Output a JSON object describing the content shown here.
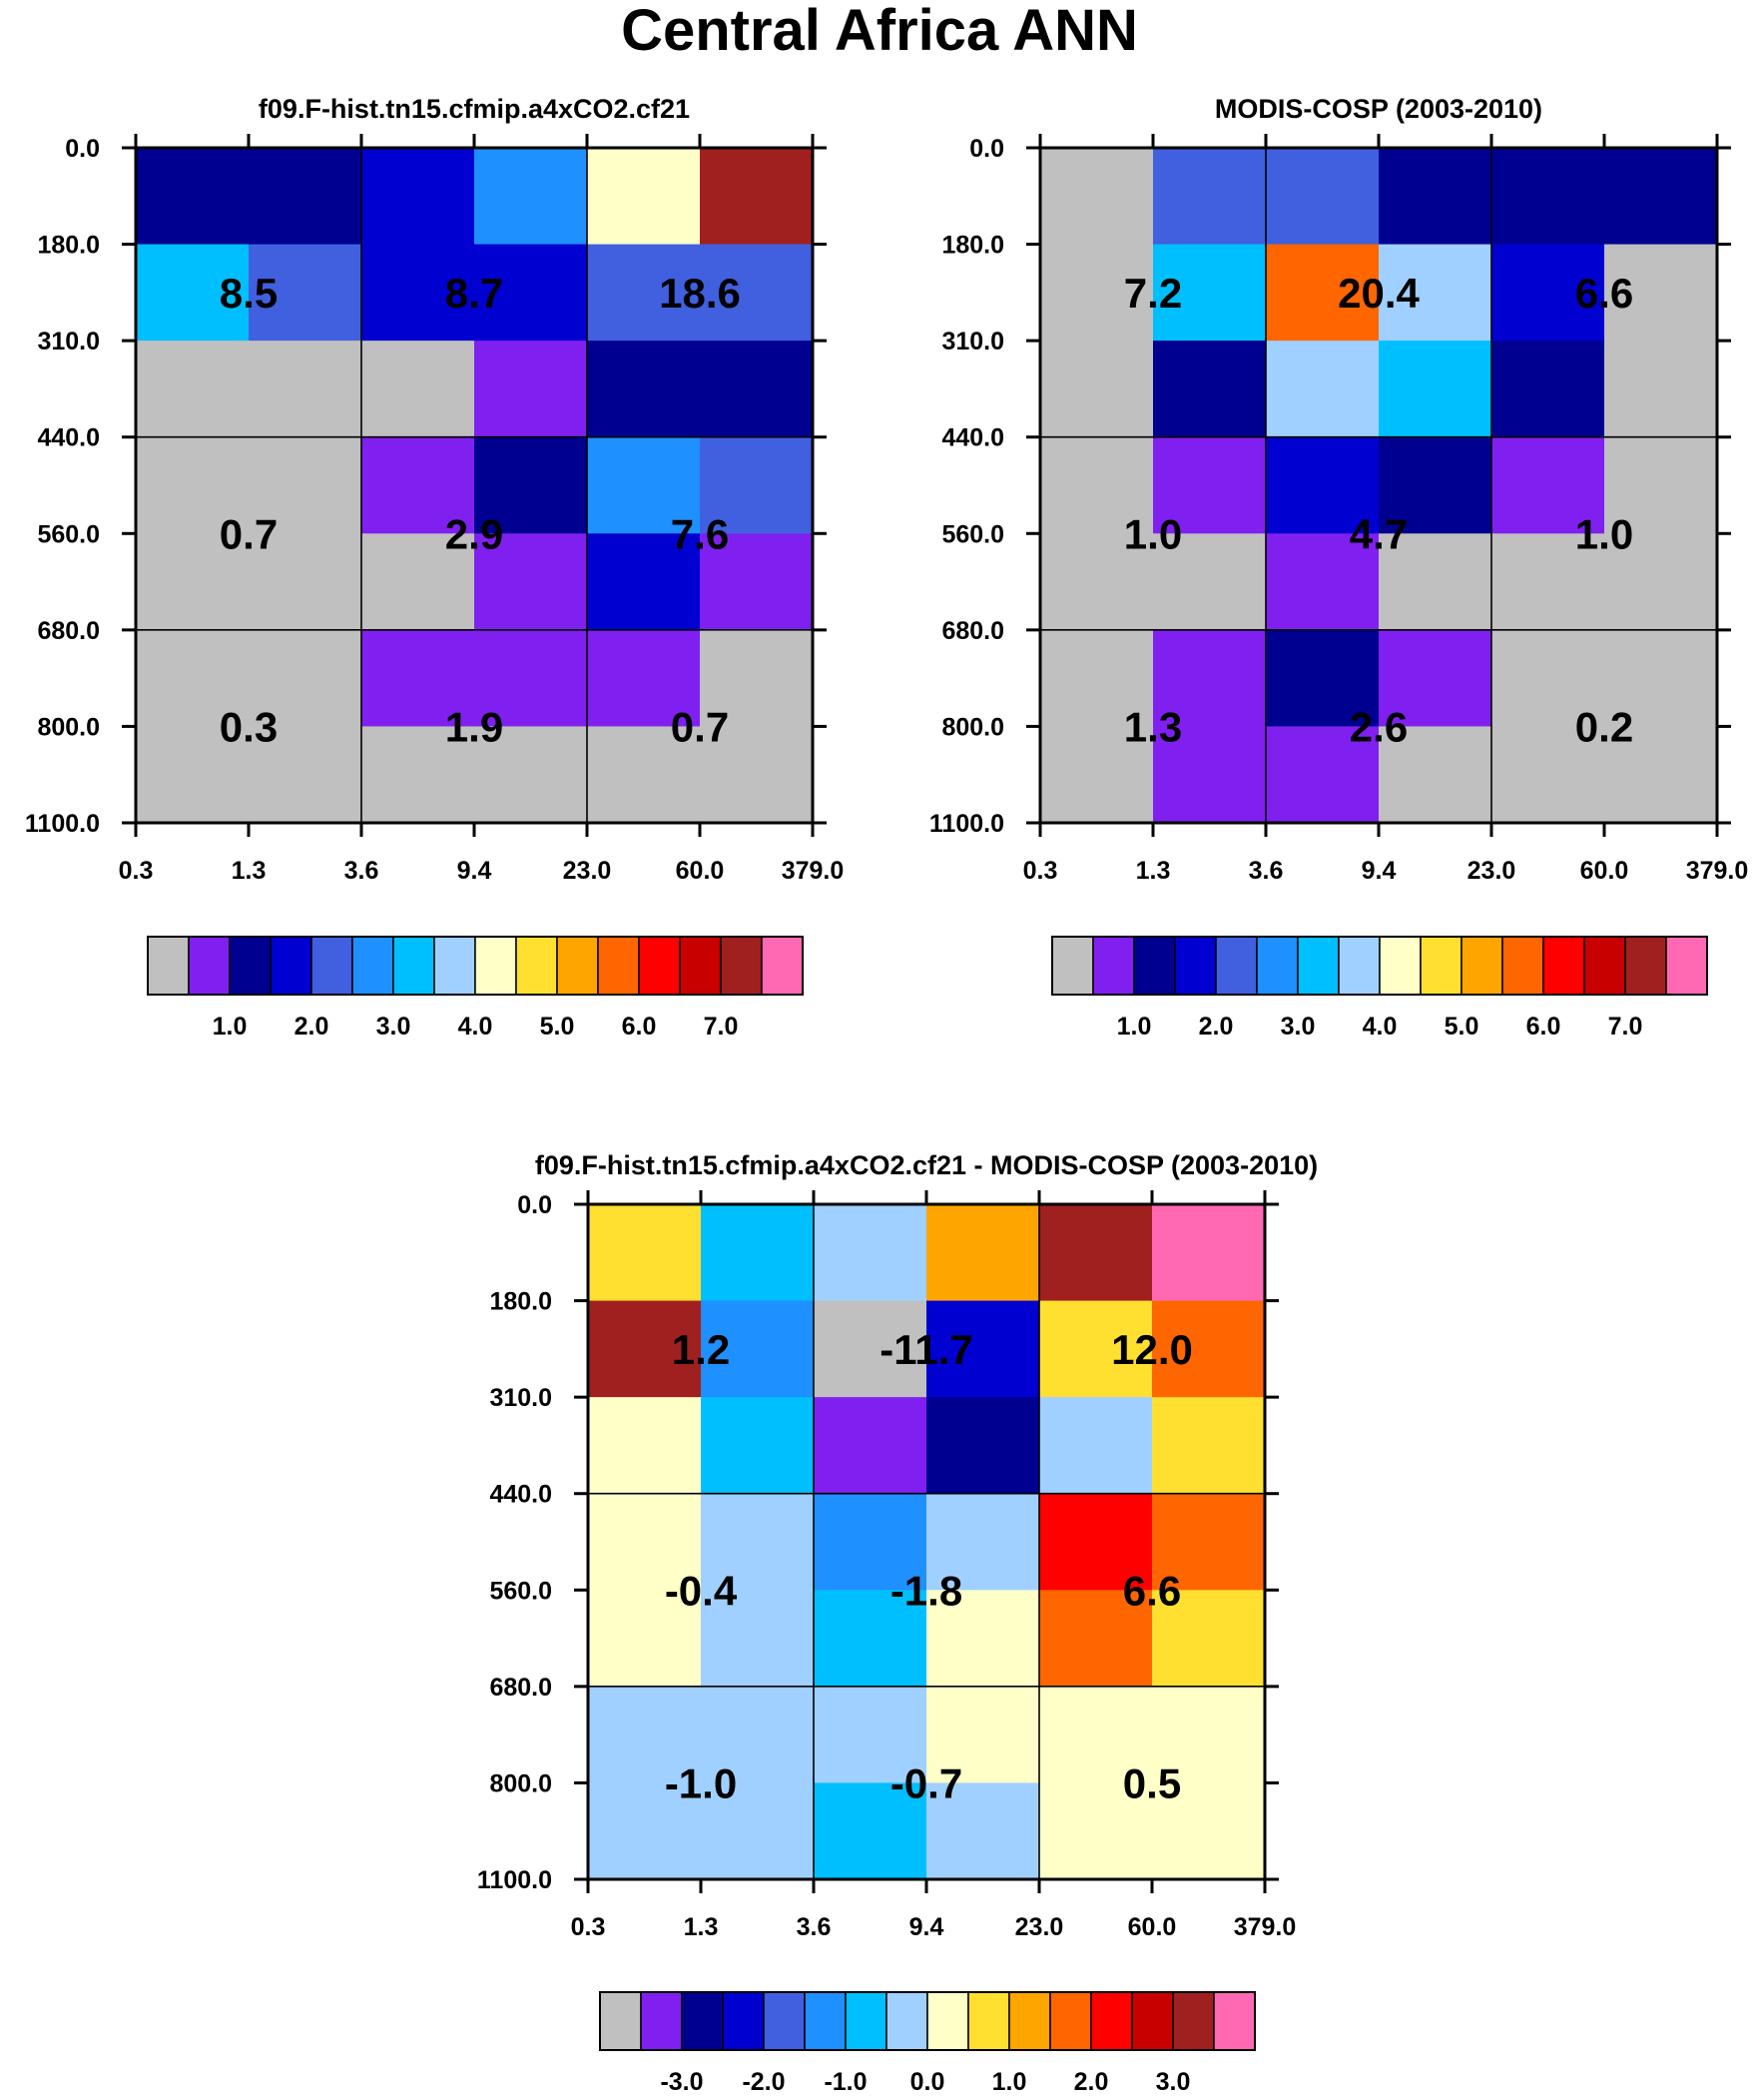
{
  "page_title": "Central Africa ANN",
  "colors": {
    "levels_main": [
      "#c0c0c0",
      "#8020f0",
      "#000090",
      "#0000d0",
      "#4060e0",
      "#1e90ff",
      "#00bfff",
      "#a0d0ff",
      "#ffffc8",
      "#ffe030",
      "#ffa500",
      "#ff6600",
      "#ff0000",
      "#c80000",
      "#a02020",
      "#ff69b4"
    ],
    "levels_diff": [
      "#c0c0c0",
      "#8020f0",
      "#000090",
      "#0000d0",
      "#4060e0",
      "#1e90ff",
      "#00bfff",
      "#a0d0ff",
      "#ffffc8",
      "#ffe030",
      "#ffa500",
      "#ff6600",
      "#ff0000",
      "#c80000",
      "#a02020",
      "#ff69b4"
    ]
  },
  "chart_data": [
    {
      "type": "heatmap",
      "title": "f09.F-hist.tn15.cfmip.a4xCO2.cf21",
      "x_ticks": [
        "0.3",
        "1.3",
        "3.6",
        "9.4",
        "23.0",
        "60.0",
        "379.0"
      ],
      "y_ticks": [
        "0.0",
        "180.0",
        "310.0",
        "440.0",
        "560.0",
        "680.0",
        "800.0",
        "1100.0"
      ],
      "cell_level_index": [
        [
          2,
          2,
          3,
          5,
          8,
          14
        ],
        [
          6,
          4,
          3,
          3,
          4,
          4
        ],
        [
          0,
          0,
          0,
          1,
          2,
          2
        ],
        [
          0,
          0,
          1,
          2,
          5,
          4
        ],
        [
          0,
          0,
          0,
          1,
          3,
          1
        ],
        [
          0,
          0,
          1,
          1,
          1,
          0
        ],
        [
          0,
          0,
          0,
          0,
          0,
          0
        ]
      ],
      "group_values": [
        [
          "8.5",
          "8.7",
          "18.6"
        ],
        [
          "0.7",
          "2.9",
          "7.6"
        ],
        [
          "0.3",
          "1.9",
          "0.7"
        ]
      ],
      "colorbar_labels": [
        "1.0",
        "2.0",
        "3.0",
        "4.0",
        "5.0",
        "6.0",
        "7.0"
      ]
    },
    {
      "type": "heatmap",
      "title": "MODIS-COSP (2003-2010)",
      "x_ticks": [
        "0.3",
        "1.3",
        "3.6",
        "9.4",
        "23.0",
        "60.0",
        "379.0"
      ],
      "y_ticks": [
        "0.0",
        "180.0",
        "310.0",
        "440.0",
        "560.0",
        "680.0",
        "800.0",
        "1100.0"
      ],
      "cell_level_index": [
        [
          0,
          4,
          4,
          2,
          2,
          2
        ],
        [
          0,
          6,
          11,
          7,
          3,
          0
        ],
        [
          0,
          2,
          7,
          6,
          2,
          0
        ],
        [
          0,
          1,
          3,
          2,
          1,
          0
        ],
        [
          0,
          0,
          1,
          0,
          0,
          0
        ],
        [
          0,
          1,
          2,
          1,
          0,
          0
        ],
        [
          0,
          1,
          1,
          0,
          0,
          0
        ]
      ],
      "group_values": [
        [
          "7.2",
          "20.4",
          "6.6"
        ],
        [
          "1.0",
          "4.7",
          "1.0"
        ],
        [
          "1.3",
          "2.6",
          "0.2"
        ]
      ],
      "colorbar_labels": [
        "1.0",
        "2.0",
        "3.0",
        "4.0",
        "5.0",
        "6.0",
        "7.0"
      ]
    },
    {
      "type": "heatmap",
      "title": "f09.F-hist.tn15.cfmip.a4xCO2.cf21 - MODIS-COSP (2003-2010)",
      "x_ticks": [
        "0.3",
        "1.3",
        "3.6",
        "9.4",
        "23.0",
        "60.0",
        "379.0"
      ],
      "y_ticks": [
        "0.0",
        "180.0",
        "310.0",
        "440.0",
        "560.0",
        "680.0",
        "800.0",
        "1100.0"
      ],
      "cell_level_index": [
        [
          9,
          6,
          7,
          10,
          14,
          15
        ],
        [
          14,
          5,
          0,
          3,
          9,
          11
        ],
        [
          8,
          6,
          1,
          2,
          7,
          9
        ],
        [
          8,
          7,
          5,
          7,
          12,
          11
        ],
        [
          8,
          7,
          6,
          8,
          11,
          9
        ],
        [
          7,
          7,
          7,
          8,
          8,
          8
        ],
        [
          7,
          7,
          6,
          7,
          8,
          8
        ]
      ],
      "group_values": [
        [
          "1.2",
          "-11.7",
          "12.0"
        ],
        [
          "-0.4",
          "-1.8",
          "6.6"
        ],
        [
          "-1.0",
          "-0.7",
          "0.5"
        ]
      ],
      "colorbar_labels": [
        "-3.0",
        "-2.0",
        "-1.0",
        "0.0",
        "1.0",
        "2.0",
        "3.0"
      ]
    }
  ]
}
